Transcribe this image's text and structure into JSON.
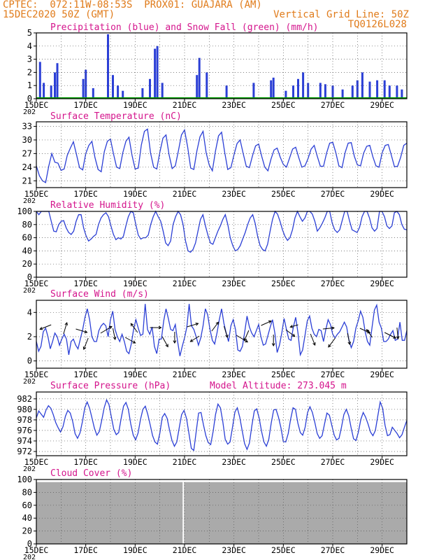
{
  "header": {
    "left1": "CPTEC:  072:11W-08:53S  PROX01: GUAJARA (AM)",
    "left2": "15DEC2020 50Z (GMT)",
    "right1": "Vertical Grid Line: 50Z",
    "right2": "TQ0126L028"
  },
  "colors": {
    "header": "#e07b1a",
    "title": "#d4148c",
    "line": "#2b3fd6",
    "snow": "#00a000",
    "cloud": "#aaaaaa",
    "axis": "#000000"
  },
  "x_tick_labels": [
    "15DEC",
    "17DEC",
    "19DEC",
    "21DEC",
    "23DEC",
    "25DEC",
    "27DEC",
    "29DEC"
  ],
  "x_year_fragment": "202",
  "chart_data": [
    {
      "type": "bar",
      "title": "Precipitation (blue) and Snow Fall (green) (mm/h)",
      "ylim": [
        0,
        5
      ],
      "y_ticks": [
        0,
        1,
        2,
        3,
        4,
        5
      ],
      "y_tick_labels": [
        "0",
        "1",
        "2",
        "3",
        "4",
        "5"
      ],
      "x_range_days": [
        0,
        15
      ],
      "precip": [
        [
          0.15,
          2.8
        ],
        [
          0.3,
          1.2
        ],
        [
          0.6,
          1.0
        ],
        [
          0.75,
          2.0
        ],
        [
          0.85,
          2.7
        ],
        [
          1.9,
          1.5
        ],
        [
          2.0,
          2.2
        ],
        [
          2.3,
          0.8
        ],
        [
          2.9,
          4.9
        ],
        [
          3.1,
          1.8
        ],
        [
          3.3,
          1.0
        ],
        [
          3.5,
          0.6
        ],
        [
          4.3,
          0.8
        ],
        [
          4.6,
          1.5
        ],
        [
          4.8,
          3.8
        ],
        [
          4.9,
          4.0
        ],
        [
          5.1,
          1.2
        ],
        [
          6.5,
          1.8
        ],
        [
          6.6,
          3.1
        ],
        [
          6.9,
          2.0
        ],
        [
          7.7,
          1.0
        ],
        [
          8.8,
          1.2
        ],
        [
          9.5,
          1.4
        ],
        [
          9.6,
          1.6
        ],
        [
          10.1,
          0.6
        ],
        [
          10.4,
          1.0
        ],
        [
          10.6,
          1.5
        ],
        [
          10.8,
          2.0
        ],
        [
          11.0,
          1.2
        ],
        [
          11.5,
          1.2
        ],
        [
          11.7,
          1.1
        ],
        [
          12.0,
          1.0
        ],
        [
          12.4,
          0.7
        ],
        [
          12.8,
          1.0
        ],
        [
          13.0,
          1.4
        ],
        [
          13.2,
          2.0
        ],
        [
          13.5,
          1.3
        ],
        [
          13.8,
          1.4
        ],
        [
          14.1,
          1.4
        ],
        [
          14.3,
          1.0
        ],
        [
          14.6,
          1.0
        ],
        [
          14.8,
          0.7
        ]
      ],
      "snow": []
    },
    {
      "type": "line",
      "title": "Surface Temperature (nC)",
      "ylim": [
        19.5,
        34
      ],
      "y_ticks": [
        21,
        24,
        27,
        30,
        33
      ],
      "y_tick_labels": [
        "21",
        "24",
        "27",
        "30",
        "33"
      ],
      "y": [
        24.3,
        22.1,
        21.0,
        20.6,
        24.2,
        27.0,
        25.1,
        24.9,
        23.3,
        23.6,
        26.6,
        28.2,
        29.6,
        26.8,
        23.9,
        23.4,
        27.0,
        28.8,
        29.7,
        26.1,
        23.5,
        23.0,
        27.4,
        29.7,
        30.2,
        26.9,
        24.0,
        23.7,
        27.2,
        29.7,
        30.6,
        26.6,
        23.6,
        23.8,
        28.9,
        31.9,
        32.4,
        27.1,
        24.0,
        23.6,
        27.3,
        30.4,
        31.1,
        26.7,
        23.7,
        24.3,
        27.6,
        31.1,
        32.2,
        28.5,
        23.8,
        23.5,
        27.6,
        30.7,
        31.9,
        27.2,
        24.5,
        23.2,
        27.5,
        30.9,
        31.7,
        27.3,
        23.5,
        23.9,
        26.7,
        29.2,
        30.0,
        27.0,
        24.2,
        23.9,
        26.5,
        28.7,
        29.1,
        26.4,
        24.0,
        23.2,
        25.8,
        27.8,
        28.2,
        26.2,
        24.6,
        24.0,
        26.0,
        28.0,
        28.4,
        26.1,
        24.0,
        24.3,
        25.9,
        28.0,
        28.8,
        26.4,
        24.2,
        24.2,
        27.1,
        29.3,
        29.5,
        27.2,
        24.3,
        23.9,
        27.2,
        29.3,
        29.4,
        26.4,
        24.5,
        24.3,
        27.1,
        28.6,
        28.8,
        26.3,
        24.3,
        24.0,
        27.2,
        28.8,
        29.0,
        26.6,
        24.1,
        24.2,
        26.2,
        28.8,
        29.3
      ]
    },
    {
      "type": "line",
      "title": "Relative Humidity (%)",
      "ylim": [
        0,
        100
      ],
      "y_ticks": [
        0,
        20,
        40,
        60,
        80,
        100
      ],
      "y_tick_labels": [
        "0",
        "20",
        "40",
        "60",
        "80",
        "100"
      ],
      "y": [
        100,
        95,
        100,
        100,
        100,
        100,
        85,
        70,
        69,
        80,
        85,
        86,
        75,
        68,
        65,
        70,
        85,
        95,
        95,
        75,
        63,
        55,
        58,
        62,
        65,
        80,
        90,
        95,
        98,
        92,
        78,
        65,
        57,
        60,
        58,
        62,
        78,
        92,
        100,
        98,
        80,
        64,
        58,
        60,
        60,
        64,
        80,
        92,
        100,
        92,
        85,
        70,
        52,
        48,
        55,
        80,
        92,
        100,
        95,
        80,
        55,
        40,
        38,
        42,
        52,
        70,
        88,
        95,
        78,
        64,
        52,
        50,
        60,
        70,
        78,
        88,
        95,
        80,
        60,
        48,
        40,
        42,
        48,
        58,
        68,
        80,
        90,
        95,
        82,
        62,
        48,
        42,
        40,
        50,
        70,
        88,
        100,
        96,
        85,
        72,
        62,
        56,
        60,
        72,
        90,
        100,
        92,
        85,
        90,
        100,
        100,
        96,
        85,
        70,
        75,
        82,
        90,
        100,
        100,
        82,
        72,
        68,
        72,
        86,
        100,
        100,
        85,
        72,
        70,
        68,
        76,
        92,
        100,
        100,
        90,
        75,
        70,
        74,
        100,
        100,
        92,
        78,
        74,
        78,
        98,
        100,
        95,
        80,
        73,
        72
      ]
    },
    {
      "type": "line",
      "title": "Surface Wind (m/s)",
      "ylim": [
        -0.6,
        5.0
      ],
      "y_ticks": [
        0,
        2,
        4
      ],
      "y_tick_labels": [
        "0",
        "2",
        "4"
      ],
      "y": [
        1.6,
        0.8,
        1.2,
        2.4,
        2.7,
        2.0,
        1.0,
        1.6,
        2.3,
        2.0,
        1.3,
        1.8,
        2.2,
        1.8,
        0.5,
        1.6,
        1.8,
        1.3,
        1.0,
        1.8,
        2.6,
        3.6,
        4.3,
        3.4,
        2.0,
        1.6,
        1.6,
        2.5,
        2.9,
        3.1,
        2.9,
        2.0,
        3.4,
        4.1,
        2.6,
        2.0,
        1.6,
        2.2,
        1.6,
        0.8,
        0.6,
        1.4,
        2.6,
        3.4,
        2.7,
        2.1,
        2.2,
        4.7,
        2.6,
        2.2,
        2.8,
        1.2,
        0.6,
        1.8,
        1.8,
        3.3,
        4.3,
        3.5,
        2.6,
        2.5,
        3.0,
        1.6,
        0.4,
        1.2,
        1.9,
        2.8,
        4.7,
        2.9,
        2.6,
        2.0,
        1.3,
        1.9,
        2.9,
        4.3,
        3.8,
        2.6,
        1.7,
        1.4,
        2.3,
        3.4,
        4.3,
        3.1,
        2.3,
        1.6,
        2.9,
        3.4,
        2.6,
        0.9,
        0.8,
        1.2,
        2.4,
        3.7,
        2.8,
        2.3,
        2.0,
        2.5,
        3.0,
        2.0,
        1.3,
        1.4,
        2.1,
        2.8,
        3.4,
        2.3,
        0.7,
        1.3,
        2.3,
        3.5,
        2.6,
        1.8,
        1.7,
        2.8,
        3.6,
        2.3,
        0.5,
        0.9,
        2.1,
        3.3,
        3.7,
        2.7,
        2.2,
        2.0,
        2.6,
        2.5,
        1.6,
        2.6,
        3.4,
        3.0,
        2.2,
        1.9,
        2.2,
        2.4,
        2.8,
        3.2,
        2.8,
        1.7,
        1.1,
        1.6,
        2.7,
        3.3,
        4.1,
        3.6,
        2.4,
        1.6,
        1.3,
        2.8,
        4.2,
        4.6,
        3.2,
        2.7,
        1.6,
        1.6,
        1.8,
        2.2,
        2.5,
        1.7,
        1.8,
        3.2,
        1.7,
        1.7,
        2.5
      ]
    },
    {
      "type": "line",
      "title": "Surface Pressure (hPa)",
      "annotation": "Model Altitude: 273.045  m",
      "ylim": [
        971.2,
        983.3
      ],
      "y_ticks": [
        972,
        974,
        976,
        978,
        980,
        982
      ],
      "y_tick_labels": [
        "972",
        "974",
        "976",
        "978",
        "980",
        "982"
      ],
      "y": [
        978.4,
        979.7,
        979.1,
        978.5,
        979.9,
        980.7,
        980.2,
        979.0,
        977.5,
        976.5,
        975.7,
        976.7,
        978.7,
        979.8,
        979.3,
        977.7,
        975.4,
        974.5,
        975.5,
        977.6,
        980.3,
        981.4,
        980.2,
        978.3,
        976.4,
        975.1,
        975.8,
        977.9,
        980.3,
        981.8,
        980.9,
        978.5,
        976.2,
        975.2,
        975.6,
        978.2,
        980.6,
        981.3,
        980.0,
        977.2,
        975.1,
        974.2,
        975.5,
        978.1,
        980.0,
        980.6,
        979.1,
        977.1,
        975.0,
        973.8,
        973.4,
        975.5,
        978.5,
        979.2,
        978.3,
        976.1,
        974.1,
        973.0,
        973.8,
        976.5,
        979.0,
        979.8,
        978.3,
        975.5,
        972.6,
        972.2,
        975.7,
        979.3,
        979.4,
        977.1,
        975.0,
        973.7,
        973.3,
        975.8,
        979.0,
        981.0,
        980.3,
        977.7,
        974.3,
        973.4,
        973.8,
        976.6,
        979.5,
        980.3,
        978.5,
        976.0,
        973.5,
        972.4,
        973.6,
        976.9,
        979.7,
        980.1,
        978.4,
        975.8,
        973.8,
        973.0,
        974.3,
        977.4,
        979.9,
        980.0,
        978.5,
        976.5,
        973.9,
        973.8,
        975.4,
        978.1,
        980.3,
        980.0,
        977.4,
        975.6,
        975.1,
        976.6,
        979.4,
        980.5,
        979.4,
        977.5,
        975.4,
        974.5,
        975.0,
        977.2,
        979.3,
        978.9,
        977.0,
        975.1,
        974.2,
        974.5,
        976.6,
        979.0,
        980.0,
        978.8,
        976.5,
        974.4,
        974.1,
        975.7,
        978.1,
        979.4,
        978.5,
        977.2,
        975.7,
        975.0,
        976.0,
        978.7,
        981.4,
        980.2,
        977.0,
        975.0,
        975.2,
        976.6,
        976.0,
        975.4,
        974.6,
        975.2,
        976.6,
        977.9
      ]
    },
    {
      "type": "area",
      "title": "Cloud Cover (%)",
      "ylim": [
        0,
        100
      ],
      "y_ticks": [
        0,
        20,
        40,
        60,
        80,
        100
      ],
      "y_tick_labels": [
        "0",
        "20",
        "40",
        "60",
        "80",
        "100"
      ],
      "fill_level": 96,
      "gap_day": 5.95
    }
  ]
}
